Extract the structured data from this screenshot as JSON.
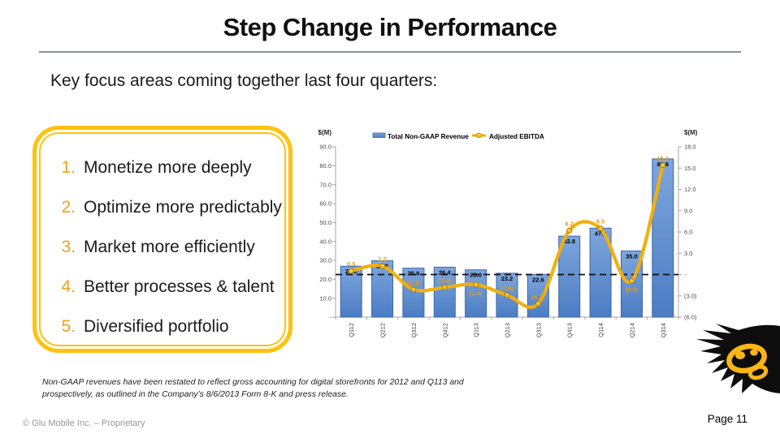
{
  "slide": {
    "title": "Step Change in Performance",
    "subtitle": "Key focus areas coming together last four quarters:",
    "focus_box": {
      "accent_color": "#F2A217",
      "border_color": "#FFC20E",
      "items": [
        {
          "number": "1.",
          "label": "Monetize more deeply"
        },
        {
          "number": "2.",
          "label": "Optimize more predictably"
        },
        {
          "number": "3.",
          "label": "Market more efficiently"
        },
        {
          "number": "4.",
          "label": "Better processes & talent"
        },
        {
          "number": "5.",
          "label": "Diversified portfolio"
        }
      ]
    },
    "footnote": "Non-GAAP revenues have been restated to reflect gross accounting for digital storefronts for 2012 and Q113 and prospectively, as outlined in the Company’s 8/6/2013 Form 8-K and press release.",
    "footer_left": "© Glu Mobile Inc. – Proprietary",
    "footer_right": "Page 11",
    "logo": {
      "name": "glu-splat-logo",
      "blob_color": "#0d0d0d",
      "mark_color": "#FDB515"
    }
  },
  "chart_data": {
    "type": "bar",
    "title": "",
    "categories": [
      "Q112",
      "Q212",
      "Q312",
      "Q412",
      "Q113",
      "Q213",
      "Q313",
      "Q413",
      "Q114",
      "Q214",
      "Q314"
    ],
    "series": [
      {
        "name": "Total Non-GAAP Revenue",
        "type": "bar",
        "axis": "left",
        "color": "#5B8BD0",
        "values": [
          26.9,
          29.8,
          25.9,
          26.4,
          25.0,
          23.2,
          22.6,
          42.8,
          47.0,
          35.0,
          83.6
        ],
        "labels": [
          "26.9",
          "29.8",
          "25.9",
          "26.4",
          "25.0",
          "23.2",
          "22.6",
          "42.8",
          "47.0",
          "35.0",
          "83.6"
        ],
        "label_color": "#000000"
      },
      {
        "name": "Adjusted EBITDA",
        "type": "line",
        "axis": "right",
        "color": "#F3AF0D",
        "values": [
          0.5,
          1.2,
          -2.1,
          -1.8,
          -1.4,
          -2.9,
          -4.1,
          6.2,
          6.5,
          -0.9,
          15.4
        ],
        "labels": [
          "0.5",
          "1.2",
          "(2.1)",
          "(1.8)",
          "(1.4)",
          "(2.9)",
          "(4.1)",
          "6.2",
          "6.5",
          "(0.9)",
          "15.4"
        ],
        "label_side": [
          "above",
          "above",
          "above",
          "above",
          "below",
          "above",
          "above",
          "above",
          "above",
          "below",
          "above"
        ],
        "label_color": "#E39B13",
        "smoothed": true,
        "markers": true
      }
    ],
    "left_axis": {
      "title": "$(M)",
      "min": 0,
      "max": 90,
      "tick_labels": [
        "90.0",
        "80.0",
        "70.0",
        "60.0",
        "50.0",
        "40.0",
        "30.0",
        "20.0",
        "10.0",
        "-"
      ]
    },
    "right_axis": {
      "title": "$(M)",
      "min": -6,
      "max": 18,
      "tick_labels": [
        "18.0",
        "15.0",
        "12.0",
        "9.0",
        "6.0",
        "3.0",
        "-",
        "(3.0)",
        "(6.0)"
      ]
    },
    "zero_line": {
      "axis": "right",
      "value": 0,
      "style": "dashed",
      "color": "#111111"
    },
    "legend_position": "top",
    "grid": false
  }
}
